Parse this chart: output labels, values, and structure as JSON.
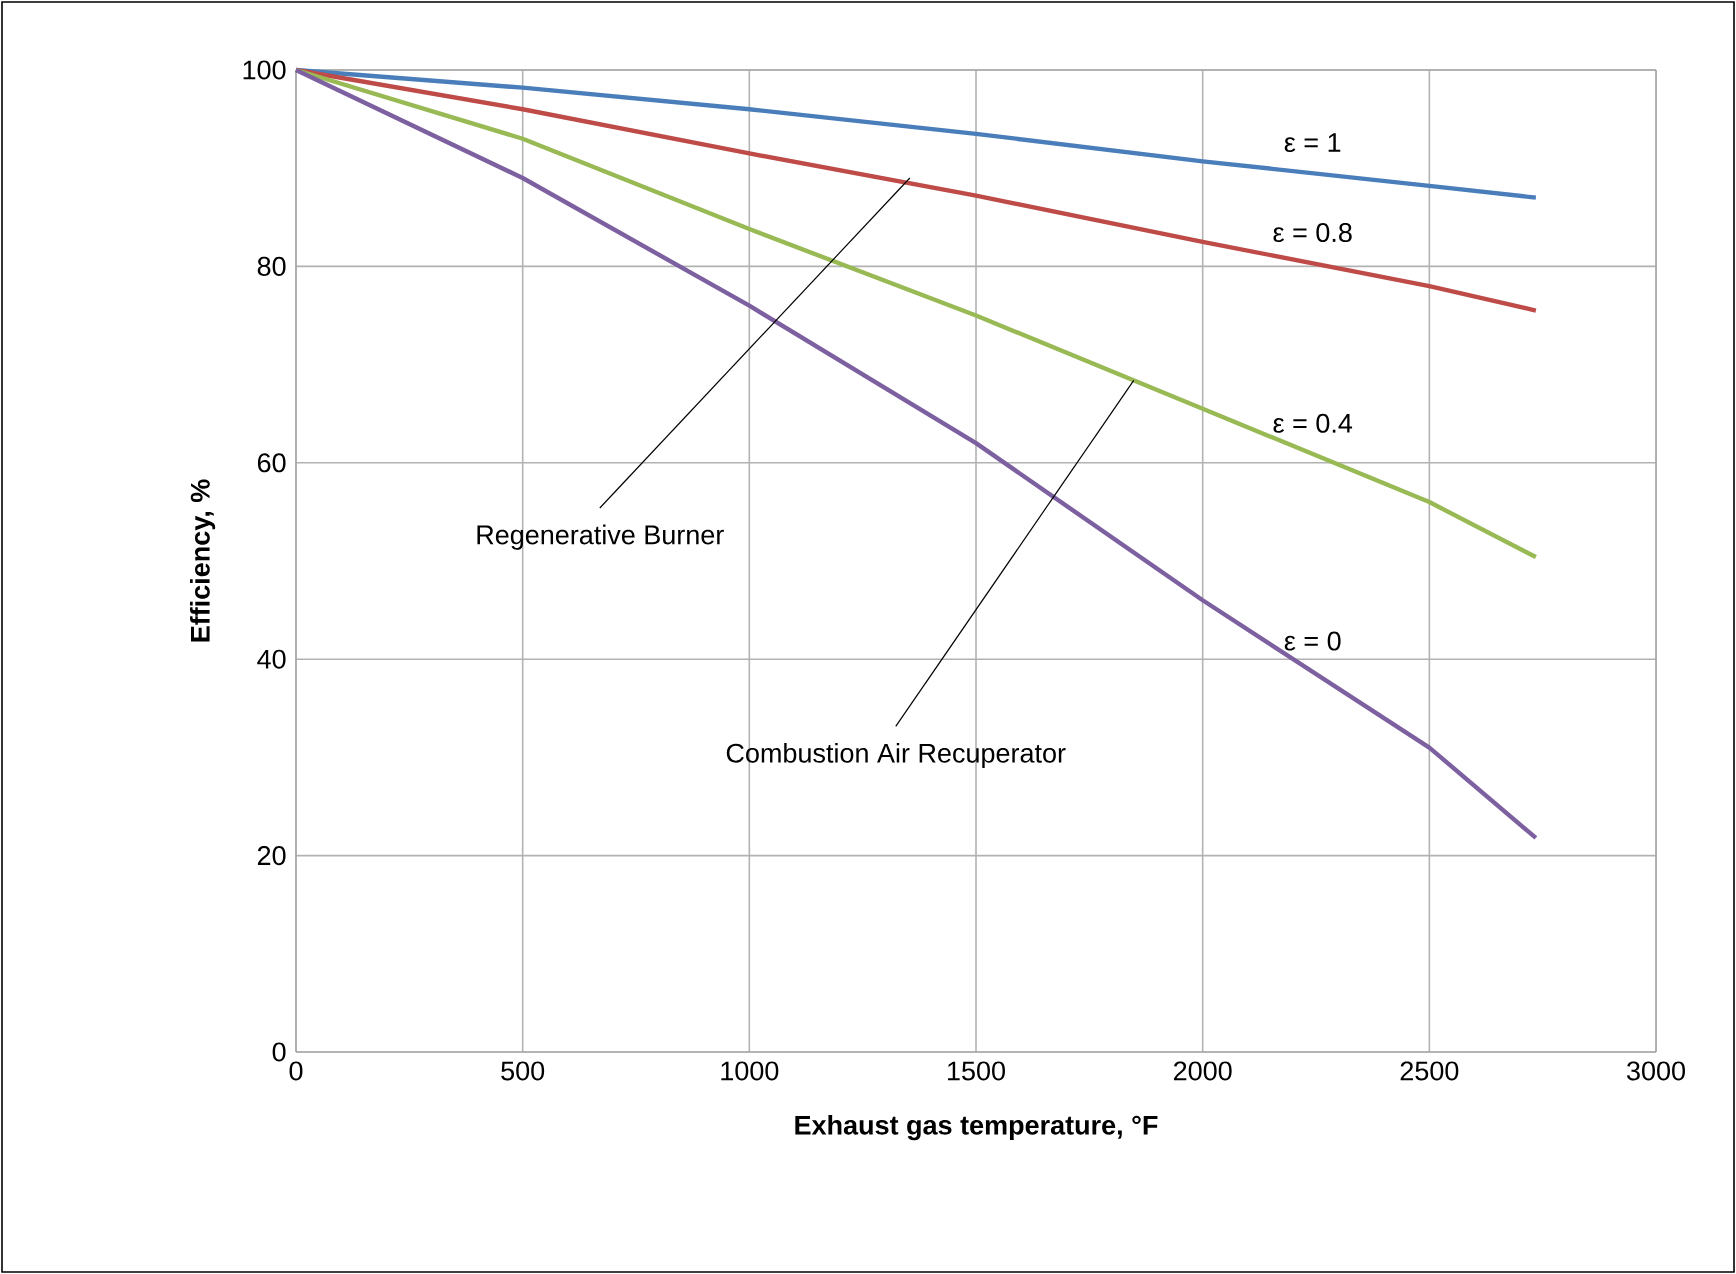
{
  "chart_data": {
    "type": "line",
    "xlabel": "Exhaust gas temperature, °F",
    "ylabel": "Efficiency, %",
    "xlim": [
      0,
      3000
    ],
    "xticks": [
      0,
      500,
      1000,
      1500,
      2000,
      2500,
      3000
    ],
    "ylim": [
      0,
      100
    ],
    "yticks": [
      0,
      20,
      40,
      60,
      80,
      100
    ],
    "grid": true,
    "marker": "none",
    "line_style": "solid",
    "series": [
      {
        "name": "ε = 1",
        "color": "#4a7ebb",
        "x": [
          0,
          500,
          1000,
          1500,
          2000,
          2500,
          2735
        ],
        "values": [
          100,
          98.2,
          96,
          93.5,
          90.7,
          88.2,
          87
        ]
      },
      {
        "name": "ε = 0.8",
        "color": "#be4b48",
        "x": [
          0,
          500,
          1000,
          1500,
          2000,
          2500,
          2735
        ],
        "values": [
          100,
          96,
          91.5,
          87.2,
          82.5,
          78,
          75.5
        ]
      },
      {
        "name": "ε = 0.4",
        "color": "#98b954",
        "x": [
          0,
          500,
          1000,
          1500,
          2000,
          2500,
          2735
        ],
        "values": [
          100,
          93,
          83.8,
          75,
          65.5,
          56,
          50.4
        ]
      },
      {
        "name": "ε = 0",
        "color": "#7d60a0",
        "x": [
          0,
          500,
          1000,
          1500,
          2000,
          2500,
          2735
        ],
        "values": [
          100,
          89,
          76,
          62,
          46,
          31,
          21.8
        ]
      }
    ],
    "annotations": [
      {
        "text": "Regenerative Burner",
        "x": 1354,
        "y": 89
      },
      {
        "text": "Combustion Air Recuperator",
        "x": 1848,
        "y": 68.4
      }
    ]
  }
}
